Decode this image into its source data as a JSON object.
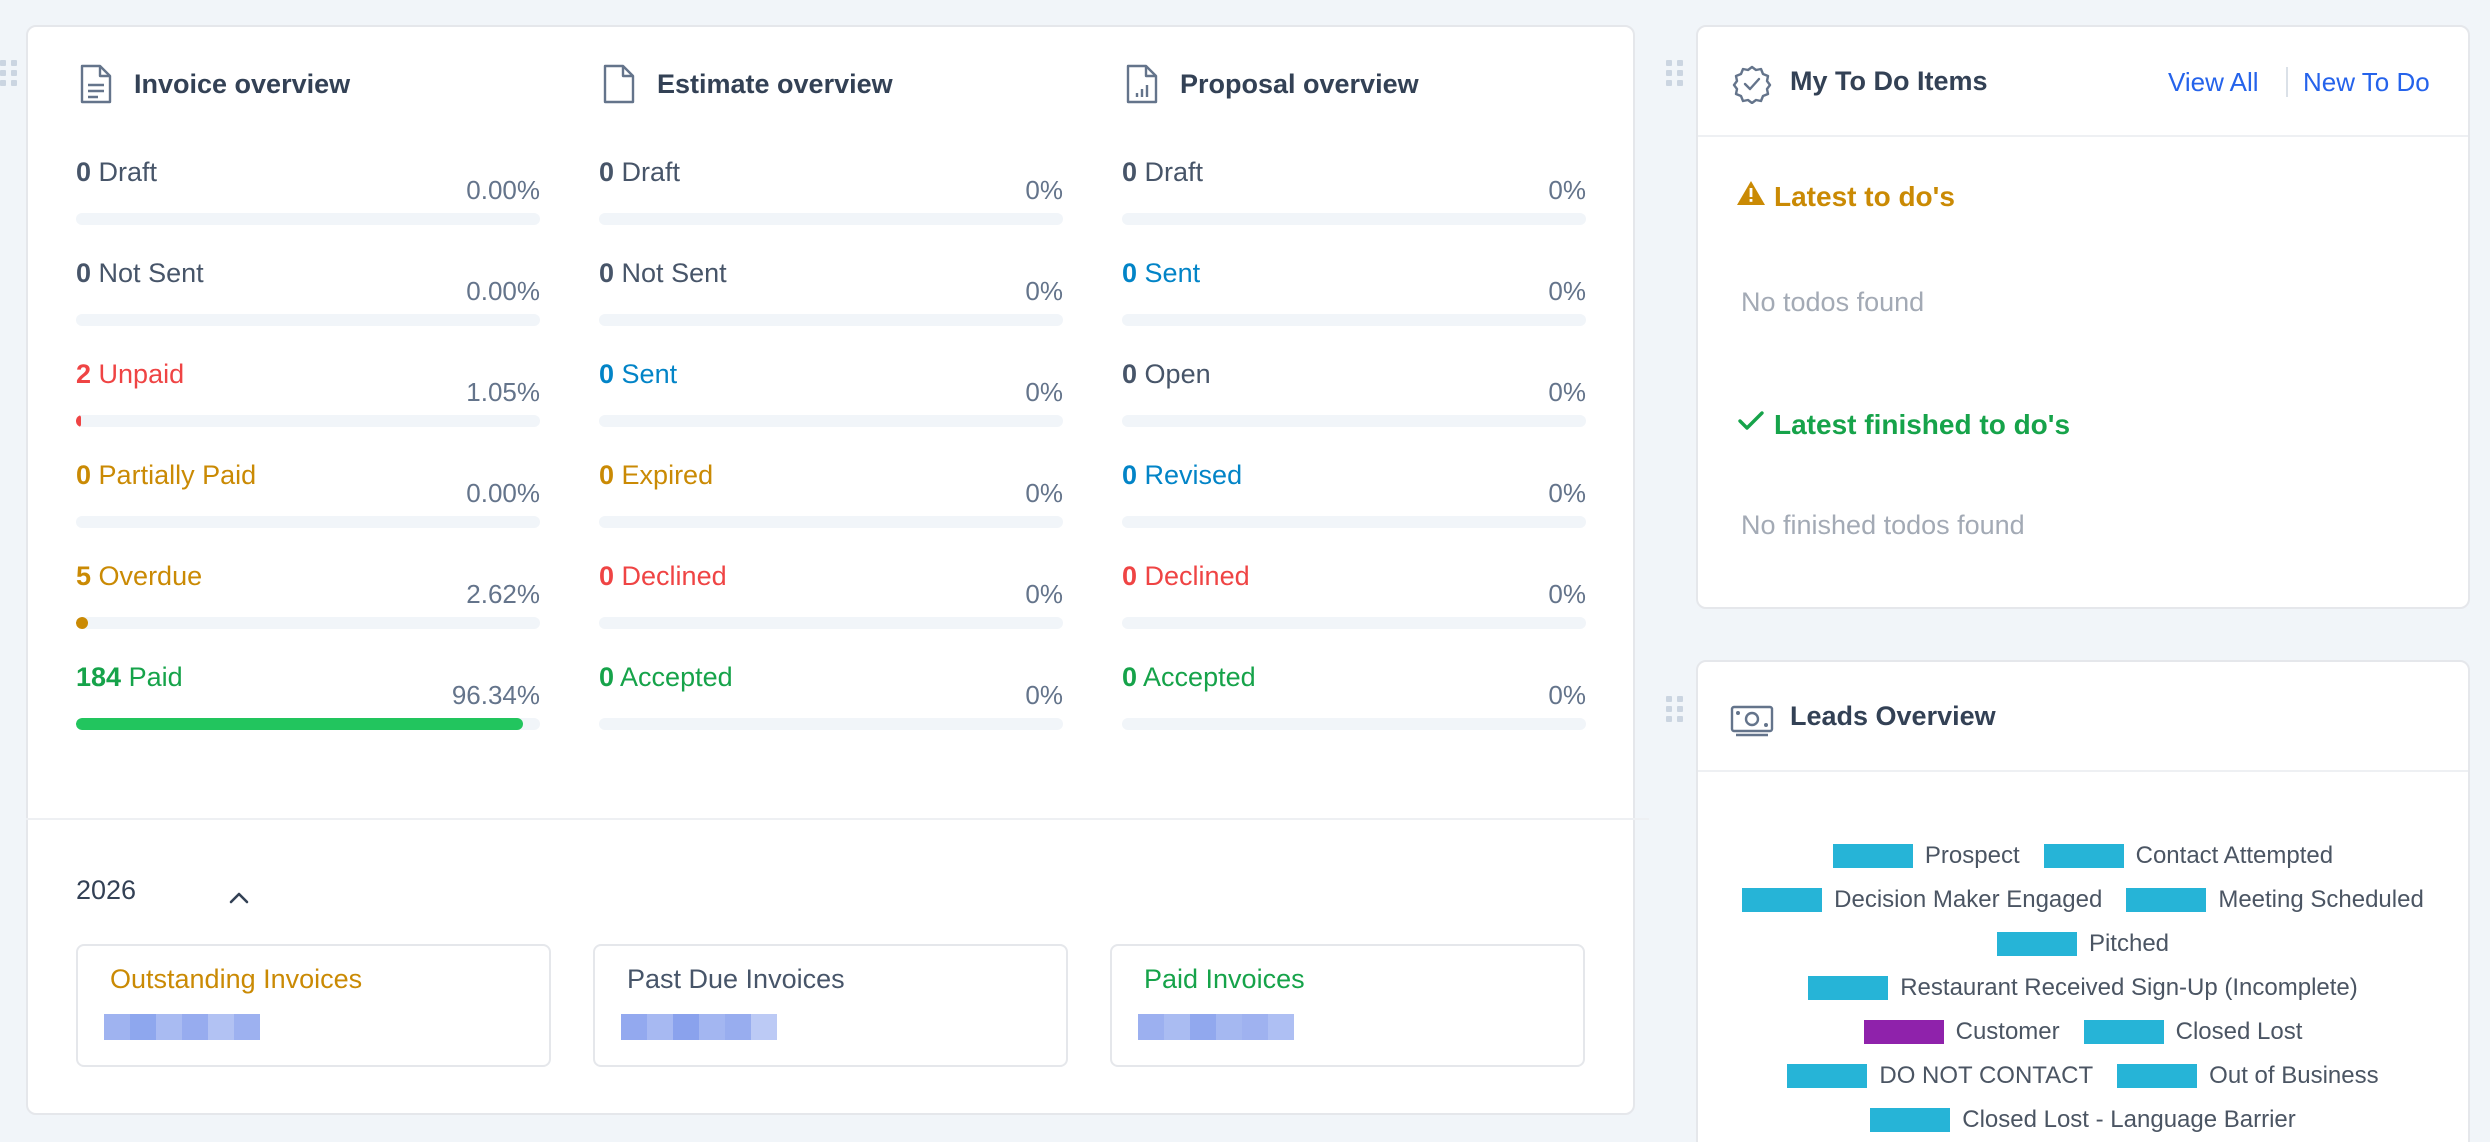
{
  "colors": {
    "draft": "#475569",
    "unpaid": "#ef4444",
    "warning": "#ca8a04",
    "success": "#16a34a",
    "info": "#0284c7",
    "paid_bar": "#22c55e",
    "link": "#2563eb",
    "lead_status": "#26b4d7",
    "lead_customer": "#8f22ab"
  },
  "invoice_overview": {
    "title": "Invoice overview",
    "icon": "document-icon",
    "stats": [
      {
        "count": "0",
        "label": "Draft",
        "pct": "0.00%",
        "progress": 0.0,
        "color": "gray"
      },
      {
        "count": "0",
        "label": "Not Sent",
        "pct": "0.00%",
        "progress": 0.0,
        "color": "gray"
      },
      {
        "count": "2",
        "label": "Unpaid",
        "pct": "1.05%",
        "progress": 1.05,
        "color": "red"
      },
      {
        "count": "0",
        "label": "Partially Paid",
        "pct": "0.00%",
        "progress": 0.0,
        "color": "orange"
      },
      {
        "count": "5",
        "label": "Overdue",
        "pct": "2.62%",
        "progress": 2.62,
        "color": "orange"
      },
      {
        "count": "184",
        "label": "Paid",
        "pct": "96.34%",
        "progress": 96.34,
        "color": "green"
      }
    ]
  },
  "estimate_overview": {
    "title": "Estimate overview",
    "icon": "file-icon",
    "stats": [
      {
        "count": "0",
        "label": "Draft",
        "pct": "0%",
        "progress": 0,
        "color": "gray"
      },
      {
        "count": "0",
        "label": "Not Sent",
        "pct": "0%",
        "progress": 0,
        "color": "gray"
      },
      {
        "count": "0",
        "label": "Sent",
        "pct": "0%",
        "progress": 0,
        "color": "blue"
      },
      {
        "count": "0",
        "label": "Expired",
        "pct": "0%",
        "progress": 0,
        "color": "orange"
      },
      {
        "count": "0",
        "label": "Declined",
        "pct": "0%",
        "progress": 0,
        "color": "red"
      },
      {
        "count": "0",
        "label": "Accepted",
        "pct": "0%",
        "progress": 0,
        "color": "green"
      }
    ]
  },
  "proposal_overview": {
    "title": "Proposal overview",
    "icon": "chart-document-icon",
    "stats": [
      {
        "count": "0",
        "label": "Draft",
        "pct": "0%",
        "progress": 0,
        "color": "gray"
      },
      {
        "count": "0",
        "label": "Sent",
        "pct": "0%",
        "progress": 0,
        "color": "blue"
      },
      {
        "count": "0",
        "label": "Open",
        "pct": "0%",
        "progress": 0,
        "color": "gray"
      },
      {
        "count": "0",
        "label": "Revised",
        "pct": "0%",
        "progress": 0,
        "color": "blue"
      },
      {
        "count": "0",
        "label": "Declined",
        "pct": "0%",
        "progress": 0,
        "color": "red"
      },
      {
        "count": "0",
        "label": "Accepted",
        "pct": "0%",
        "progress": 0,
        "color": "green"
      }
    ]
  },
  "year_section": {
    "year": "2026",
    "chevron": "chevron-up-icon",
    "boxes": [
      {
        "title": "Outstanding Invoices",
        "color": "orange"
      },
      {
        "title": "Past Due Invoices",
        "color": "gray"
      },
      {
        "title": "Paid Invoices",
        "color": "green"
      }
    ]
  },
  "todo": {
    "title": "My To Do Items",
    "icon": "check-badge-icon",
    "view_all": "View All",
    "new_todo": "New To Do",
    "latest_title": "Latest to do's",
    "latest_icon": "warning-icon",
    "latest_empty": "No todos found",
    "finished_title": "Latest finished to do's",
    "finished_icon": "check-icon",
    "finished_empty": "No finished todos found"
  },
  "leads": {
    "title": "Leads Overview",
    "icon": "money-icon",
    "legend_rows": [
      [
        {
          "label": "Prospect",
          "color": "#26b4d7"
        },
        {
          "label": "Contact Attempted",
          "color": "#26b4d7"
        }
      ],
      [
        {
          "label": "Decision Maker Engaged",
          "color": "#26b4d7"
        },
        {
          "label": "Meeting Scheduled",
          "color": "#26b4d7"
        }
      ],
      [
        {
          "label": "Pitched",
          "color": "#26b4d7"
        }
      ],
      [
        {
          "label": "Restaurant Received Sign-Up (Incomplete)",
          "color": "#26b4d7"
        }
      ],
      [
        {
          "label": "Customer",
          "color": "#8f22ab"
        },
        {
          "label": "Closed Lost",
          "color": "#26b4d7"
        }
      ],
      [
        {
          "label": "DO NOT CONTACT",
          "color": "#26b4d7"
        },
        {
          "label": "Out of Business",
          "color": "#26b4d7"
        }
      ],
      [
        {
          "label": "Closed Lost - Language Barrier",
          "color": "#26b4d7"
        }
      ]
    ]
  }
}
